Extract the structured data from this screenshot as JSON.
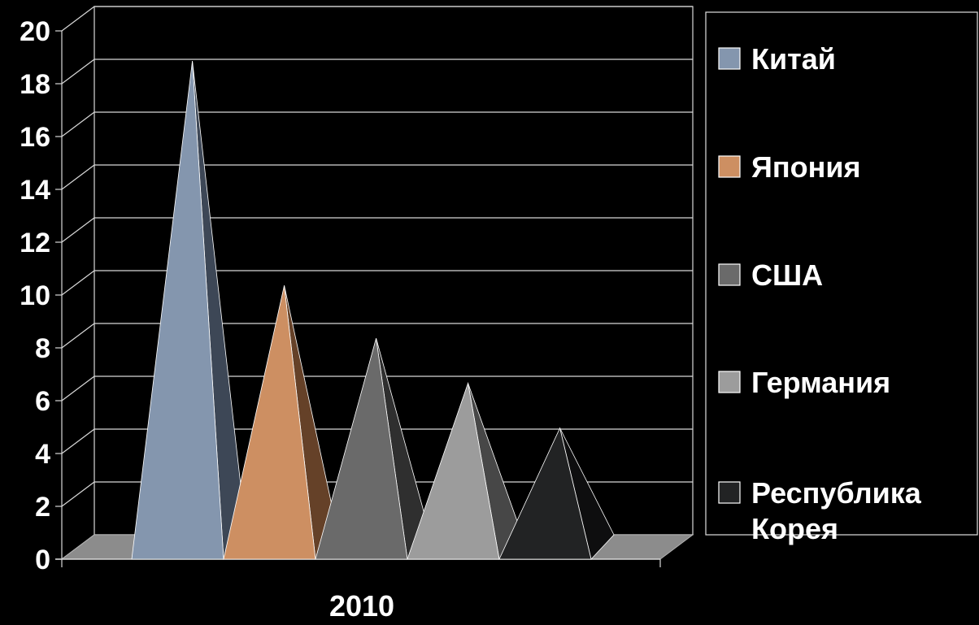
{
  "chart_data": {
    "type": "bar",
    "title": "",
    "xlabel": "",
    "ylabel": "",
    "categories": [
      "2010"
    ],
    "ylim": [
      0,
      20
    ],
    "ytick_step": 2,
    "grid": true,
    "legend_position": "right",
    "series": [
      {
        "name": "Китай",
        "values": [
          18.2
        ],
        "color": "#8496AE",
        "side_color": "#3D4756"
      },
      {
        "name": "Япония",
        "values": [
          9.7
        ],
        "color": "#CD8F62",
        "side_color": "#654128"
      },
      {
        "name": "США",
        "values": [
          7.7
        ],
        "color": "#6A6A6A",
        "side_color": "#2F2F2F"
      },
      {
        "name": "Германия",
        "values": [
          6.0
        ],
        "color": "#9C9C9C",
        "side_color": "#474747"
      },
      {
        "name": "Республика Корея",
        "values": [
          4.3
        ],
        "color": "#222324",
        "side_color": "#0E0E0F"
      }
    ]
  }
}
